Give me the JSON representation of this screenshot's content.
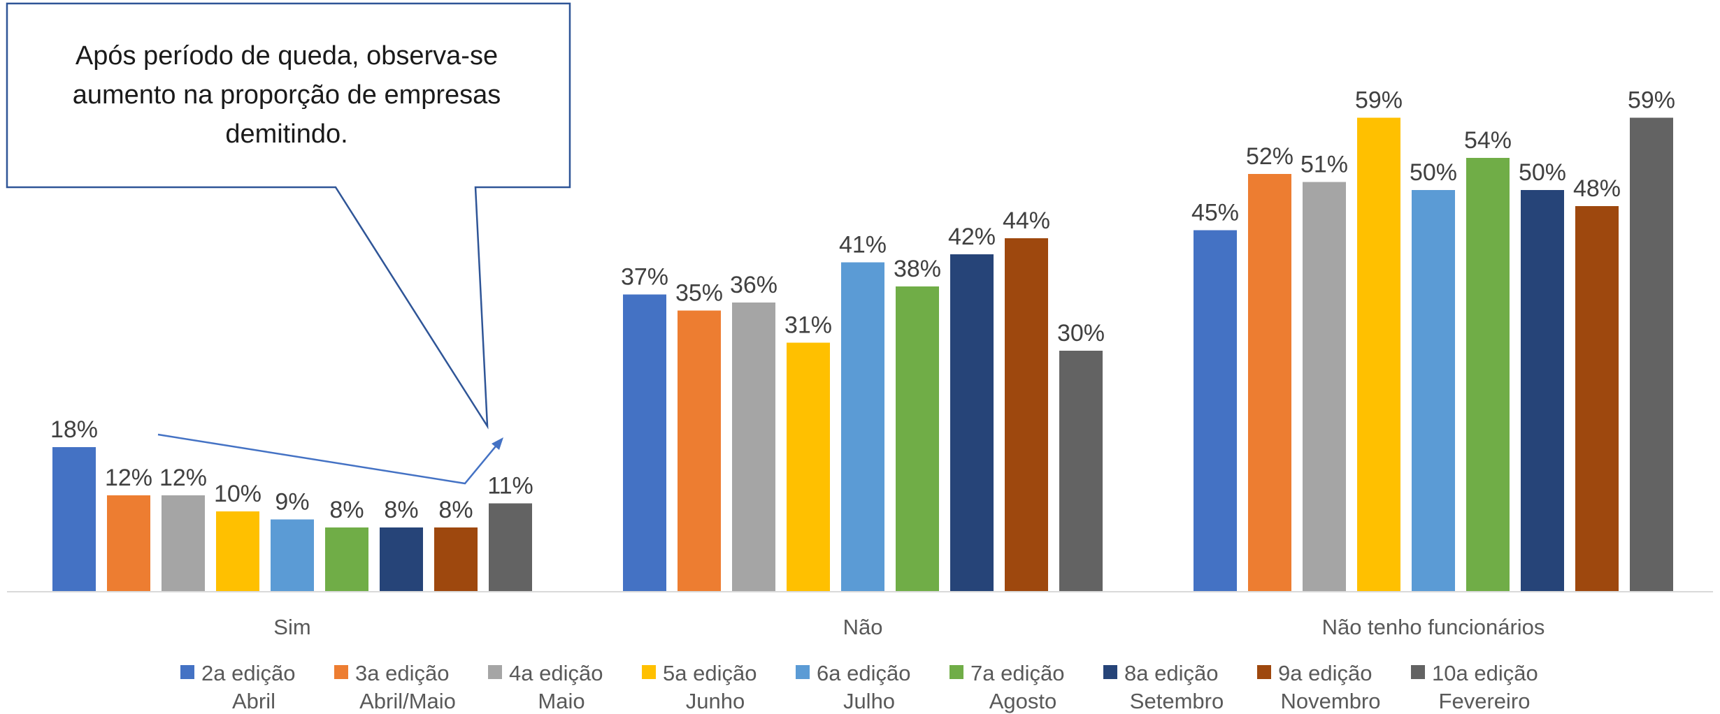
{
  "chart_data": {
    "type": "bar",
    "categories": [
      "Sim",
      "Não",
      "Não tenho funcionários"
    ],
    "series": [
      {
        "line1": "2a edição",
        "line2": "Abril",
        "color": "#4472C4",
        "values": [
          18,
          37,
          45
        ]
      },
      {
        "line1": "3a edição",
        "line2": "Abril/Maio",
        "color": "#ED7D31",
        "values": [
          12,
          35,
          52
        ]
      },
      {
        "line1": "4a edição",
        "line2": "Maio",
        "color": "#A5A5A5",
        "values": [
          12,
          36,
          51
        ]
      },
      {
        "line1": "5a edição",
        "line2": "Junho",
        "color": "#FFC000",
        "values": [
          10,
          31,
          59
        ]
      },
      {
        "line1": "6a edição",
        "line2": "Julho",
        "color": "#5B9BD5",
        "values": [
          9,
          41,
          50
        ]
      },
      {
        "line1": "7a edição",
        "line2": "Agosto",
        "color": "#70AD47",
        "values": [
          8,
          38,
          54
        ]
      },
      {
        "line1": "8a edição",
        "line2": "Setembro",
        "color": "#264478",
        "values": [
          8,
          42,
          50
        ]
      },
      {
        "line1": "9a edição",
        "line2": "Novembro",
        "color": "#9E480E",
        "values": [
          8,
          44,
          48
        ]
      },
      {
        "line1": "10a edição",
        "line2": "Fevereiro",
        "color": "#636363",
        "values": [
          11,
          30,
          59
        ]
      }
    ],
    "value_suffix": "%",
    "ylim": [
      0,
      60
    ],
    "grid": false,
    "legend": "bottom",
    "annotation": {
      "lines": [
        "Após período de queda, observa-se",
        "aumento na proporção de empresas",
        "demitindo."
      ]
    }
  }
}
